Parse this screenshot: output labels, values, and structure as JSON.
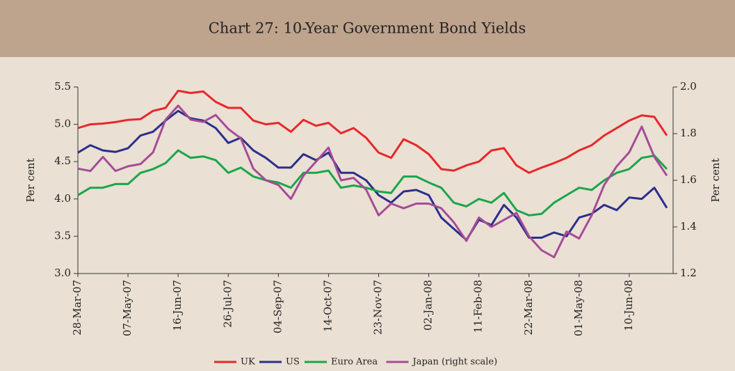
{
  "chart_data": {
    "type": "line",
    "title": "Chart 27: 10-Year Government Bond Yields",
    "y_label": "Per cent",
    "y2_label": "Per cent",
    "x": [
      "2007-03-28",
      "2007-04-07",
      "2007-04-17",
      "2007-04-27",
      "2007-05-07",
      "2007-05-17",
      "2007-05-27",
      "2007-06-06",
      "2007-06-16",
      "2007-06-26",
      "2007-07-06",
      "2007-07-16",
      "2007-07-26",
      "2007-08-05",
      "2007-08-15",
      "2007-08-25",
      "2007-09-04",
      "2007-09-14",
      "2007-09-24",
      "2007-10-04",
      "2007-10-14",
      "2007-10-24",
      "2007-11-03",
      "2007-11-13",
      "2007-11-23",
      "2007-12-03",
      "2007-12-13",
      "2007-12-23",
      "2008-01-02",
      "2008-01-12",
      "2008-01-22",
      "2008-02-01",
      "2008-02-11",
      "2008-02-21",
      "2008-03-02",
      "2008-03-12",
      "2008-03-22",
      "2008-04-01",
      "2008-04-11",
      "2008-04-21",
      "2008-05-01",
      "2008-05-11",
      "2008-05-21",
      "2008-05-31",
      "2008-06-10",
      "2008-06-20",
      "2008-06-30",
      "2008-07-10"
    ],
    "series": [
      {
        "name": "UK",
        "color": "#e8262a",
        "values": [
          4.95,
          5.0,
          5.01,
          5.03,
          5.06,
          5.07,
          5.18,
          5.22,
          5.45,
          5.42,
          5.44,
          5.3,
          5.22,
          5.22,
          5.05,
          5.0,
          5.02,
          4.9,
          5.06,
          4.98,
          5.02,
          4.88,
          4.95,
          4.82,
          4.62,
          4.55,
          4.8,
          4.72,
          4.6,
          4.4,
          4.38,
          4.45,
          4.5,
          4.65,
          4.68,
          4.45,
          4.35,
          4.42,
          4.48,
          4.55,
          4.65,
          4.72,
          4.85,
          4.95,
          5.05,
          5.12,
          5.1,
          4.85
        ]
      },
      {
        "name": "US",
        "color": "#2b2e8c",
        "values": [
          4.62,
          4.72,
          4.65,
          4.63,
          4.68,
          4.85,
          4.9,
          5.05,
          5.18,
          5.08,
          5.05,
          4.95,
          4.75,
          4.82,
          4.65,
          4.55,
          4.42,
          4.42,
          4.6,
          4.52,
          4.62,
          4.35,
          4.35,
          4.25,
          4.05,
          3.95,
          4.1,
          4.12,
          4.05,
          3.75,
          3.6,
          3.45,
          3.72,
          3.65,
          3.92,
          3.75,
          3.48,
          3.48,
          3.55,
          3.5,
          3.75,
          3.8,
          3.92,
          3.85,
          4.02,
          4.0,
          4.15,
          3.88
        ]
      },
      {
        "name": "Euro Area",
        "color": "#1aa54a",
        "values": [
          4.05,
          4.15,
          4.15,
          4.2,
          4.2,
          4.35,
          4.4,
          4.48,
          4.65,
          4.55,
          4.57,
          4.52,
          4.35,
          4.42,
          4.3,
          4.25,
          4.22,
          4.15,
          4.35,
          4.35,
          4.38,
          4.15,
          4.18,
          4.15,
          4.1,
          4.08,
          4.3,
          4.3,
          4.22,
          4.15,
          3.95,
          3.9,
          4.0,
          3.95,
          4.08,
          3.85,
          3.78,
          3.8,
          3.95,
          4.05,
          4.15,
          4.12,
          4.25,
          4.35,
          4.4,
          4.55,
          4.58,
          4.4
        ]
      },
      {
        "name": "Japan (right scale)",
        "color": "#a54b97",
        "axis": "y2",
        "values": [
          1.65,
          1.64,
          1.7,
          1.64,
          1.66,
          1.67,
          1.72,
          1.86,
          1.92,
          1.86,
          1.85,
          1.88,
          1.82,
          1.78,
          1.65,
          1.6,
          1.58,
          1.52,
          1.62,
          1.68,
          1.74,
          1.6,
          1.61,
          1.56,
          1.45,
          1.5,
          1.48,
          1.5,
          1.5,
          1.48,
          1.42,
          1.34,
          1.44,
          1.4,
          1.43,
          1.46,
          1.36,
          1.3,
          1.27,
          1.38,
          1.35,
          1.45,
          1.58,
          1.66,
          1.72,
          1.83,
          1.7,
          1.62
        ]
      }
    ],
    "xlim": [
      "2007-03-28",
      "2008-07-15"
    ],
    "xticks": [
      {
        "value": "2007-03-28",
        "label": "28-Mar-07"
      },
      {
        "value": "2007-05-07",
        "label": "07-May-07"
      },
      {
        "value": "2007-06-16",
        "label": "16-Jun-07"
      },
      {
        "value": "2007-07-26",
        "label": "26-Jul-07"
      },
      {
        "value": "2007-09-04",
        "label": "04-Sep-07"
      },
      {
        "value": "2007-10-14",
        "label": "14-Oct-07"
      },
      {
        "value": "2007-11-23",
        "label": "23-Nov-07"
      },
      {
        "value": "2008-01-02",
        "label": "02-Jan-08"
      },
      {
        "value": "2008-02-11",
        "label": "11-Feb-08"
      },
      {
        "value": "2008-03-22",
        "label": "22-Mar-08"
      },
      {
        "value": "2008-05-01",
        "label": "01-May-08"
      },
      {
        "value": "2008-06-10",
        "label": "10-Jun-08"
      }
    ],
    "ylim": [
      3.0,
      5.5
    ],
    "yticks": [
      {
        "value": 3,
        "label": "3.0"
      },
      3.5,
      {
        "value": 4,
        "label": "4.0"
      },
      4.5,
      {
        "value": 5,
        "label": "5.0"
      },
      5.5
    ],
    "y2lim": [
      1.2,
      2.0
    ],
    "y2ticks": [
      1.2,
      1.4,
      1.6,
      1.8,
      {
        "value": 2,
        "label": "2.0"
      }
    ]
  }
}
